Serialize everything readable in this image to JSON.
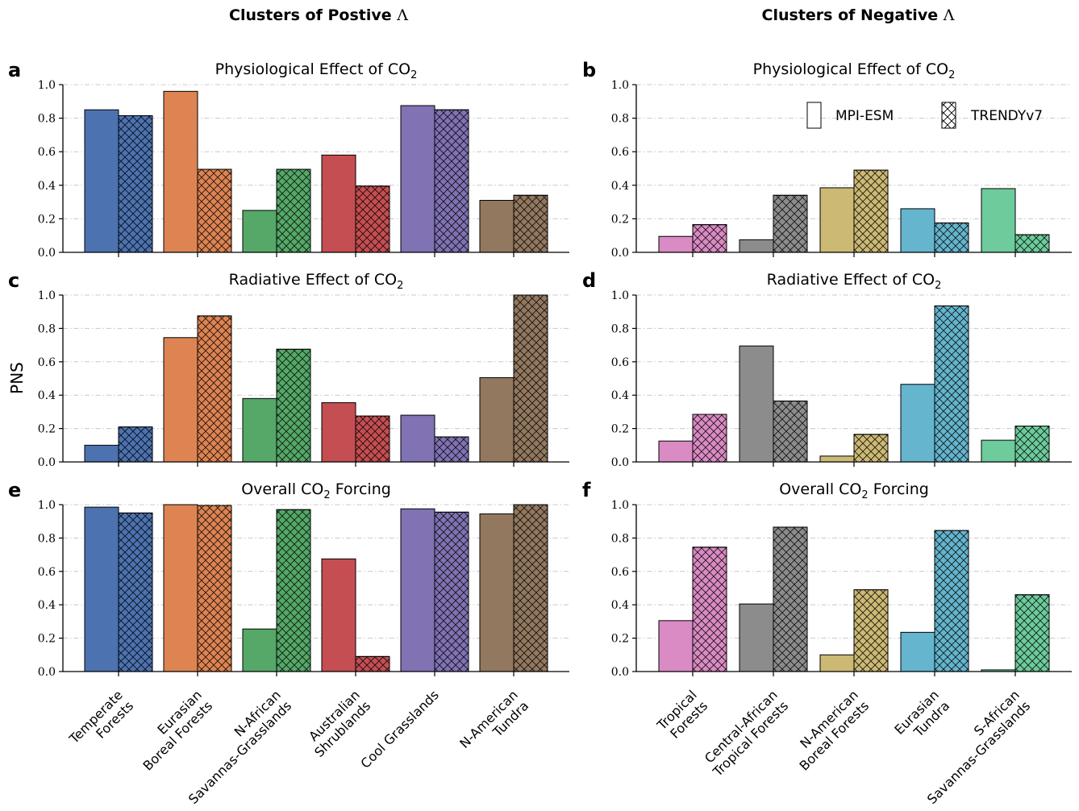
{
  "figure": {
    "col_titles": {
      "left": {
        "text": "Clusters of Postive ",
        "symbol": "Λ"
      },
      "right": {
        "text": "Clusters of Negative ",
        "symbol": "Λ"
      }
    },
    "ylabel": "PNS",
    "yticks": [
      "0.0",
      "0.2",
      "0.4",
      "0.6",
      "0.8",
      "1.0"
    ],
    "legend": {
      "solid_label": "MPI-ESM",
      "hatched_label": "TRENDYv7"
    },
    "left_categories": [
      [
        "Temperate",
        "Forests"
      ],
      [
        "Eurasian",
        "Boreal Forests"
      ],
      [
        "N-African",
        "Savannas-Grasslands"
      ],
      [
        "Australian",
        "Shrublands"
      ],
      [
        "Cool Grasslands"
      ],
      [
        "N-American",
        "Tundra"
      ]
    ],
    "right_categories": [
      [
        "Tropical",
        "Forests"
      ],
      [
        "Central-African",
        "Tropical Forests"
      ],
      [
        "N-American",
        "Boreal Forests"
      ],
      [
        "Eurasian",
        "Tundra"
      ],
      [
        "S-African",
        "Savannas-Grasslands"
      ]
    ],
    "left_colors": [
      "#4c72b0",
      "#dd8452",
      "#55a868",
      "#c44e52",
      "#8172b3",
      "#937860"
    ],
    "right_colors": [
      "#da8bc3",
      "#8c8c8c",
      "#ccb974",
      "#64b5cd",
      "#6dcb9c"
    ]
  },
  "chart_data": [
    {
      "type": "bar",
      "letter": "a",
      "title": {
        "prefix": "Physiological Effect of CO",
        "sub": "2"
      },
      "group": "left",
      "ylim": [
        0,
        1
      ],
      "series": [
        {
          "name": "MPI-ESM",
          "values": [
            0.85,
            0.96,
            0.25,
            0.58,
            0.875,
            0.31
          ]
        },
        {
          "name": "TRENDYv7",
          "values": [
            0.815,
            0.495,
            0.495,
            0.395,
            0.85,
            0.34
          ]
        }
      ]
    },
    {
      "type": "bar",
      "letter": "b",
      "title": {
        "prefix": "Physiological Effect of CO",
        "sub": "2"
      },
      "group": "right",
      "legend": true,
      "ylim": [
        0,
        1
      ],
      "series": [
        {
          "name": "MPI-ESM",
          "values": [
            0.095,
            0.075,
            0.385,
            0.26,
            0.38
          ]
        },
        {
          "name": "TRENDYv7",
          "values": [
            0.165,
            0.34,
            0.49,
            0.175,
            0.105
          ]
        }
      ]
    },
    {
      "type": "bar",
      "letter": "c",
      "title": {
        "prefix": "Radiative Effect of CO",
        "sub": "2"
      },
      "group": "left",
      "ylim": [
        0,
        1
      ],
      "series": [
        {
          "name": "MPI-ESM",
          "values": [
            0.1,
            0.745,
            0.38,
            0.355,
            0.28,
            0.505
          ]
        },
        {
          "name": "TRENDYv7",
          "values": [
            0.21,
            0.875,
            0.675,
            0.275,
            0.15,
            1.0
          ]
        }
      ]
    },
    {
      "type": "bar",
      "letter": "d",
      "title": {
        "prefix": "Radiative Effect of CO",
        "sub": "2"
      },
      "group": "right",
      "ylim": [
        0,
        1
      ],
      "series": [
        {
          "name": "MPI-ESM",
          "values": [
            0.125,
            0.695,
            0.035,
            0.465,
            0.13
          ]
        },
        {
          "name": "TRENDYv7",
          "values": [
            0.285,
            0.365,
            0.165,
            0.935,
            0.215
          ]
        }
      ]
    },
    {
      "type": "bar",
      "letter": "e",
      "title": {
        "prefix": "Overall CO",
        "sub": "2",
        "suffix": " Forcing"
      },
      "group": "left",
      "xticks": true,
      "ylim": [
        0,
        1
      ],
      "series": [
        {
          "name": "MPI-ESM",
          "values": [
            0.985,
            1.0,
            0.255,
            0.675,
            0.975,
            0.945
          ]
        },
        {
          "name": "TRENDYv7",
          "values": [
            0.95,
            0.995,
            0.97,
            0.09,
            0.955,
            1.0
          ]
        }
      ]
    },
    {
      "type": "bar",
      "letter": "f",
      "title": {
        "prefix": "Overall CO",
        "sub": "2",
        "suffix": " Forcing"
      },
      "group": "right",
      "xticks": true,
      "ylim": [
        0,
        1
      ],
      "series": [
        {
          "name": "MPI-ESM",
          "values": [
            0.305,
            0.405,
            0.1,
            0.235,
            0.01
          ]
        },
        {
          "name": "TRENDYv7",
          "values": [
            0.745,
            0.865,
            0.49,
            0.845,
            0.46
          ]
        }
      ]
    }
  ]
}
